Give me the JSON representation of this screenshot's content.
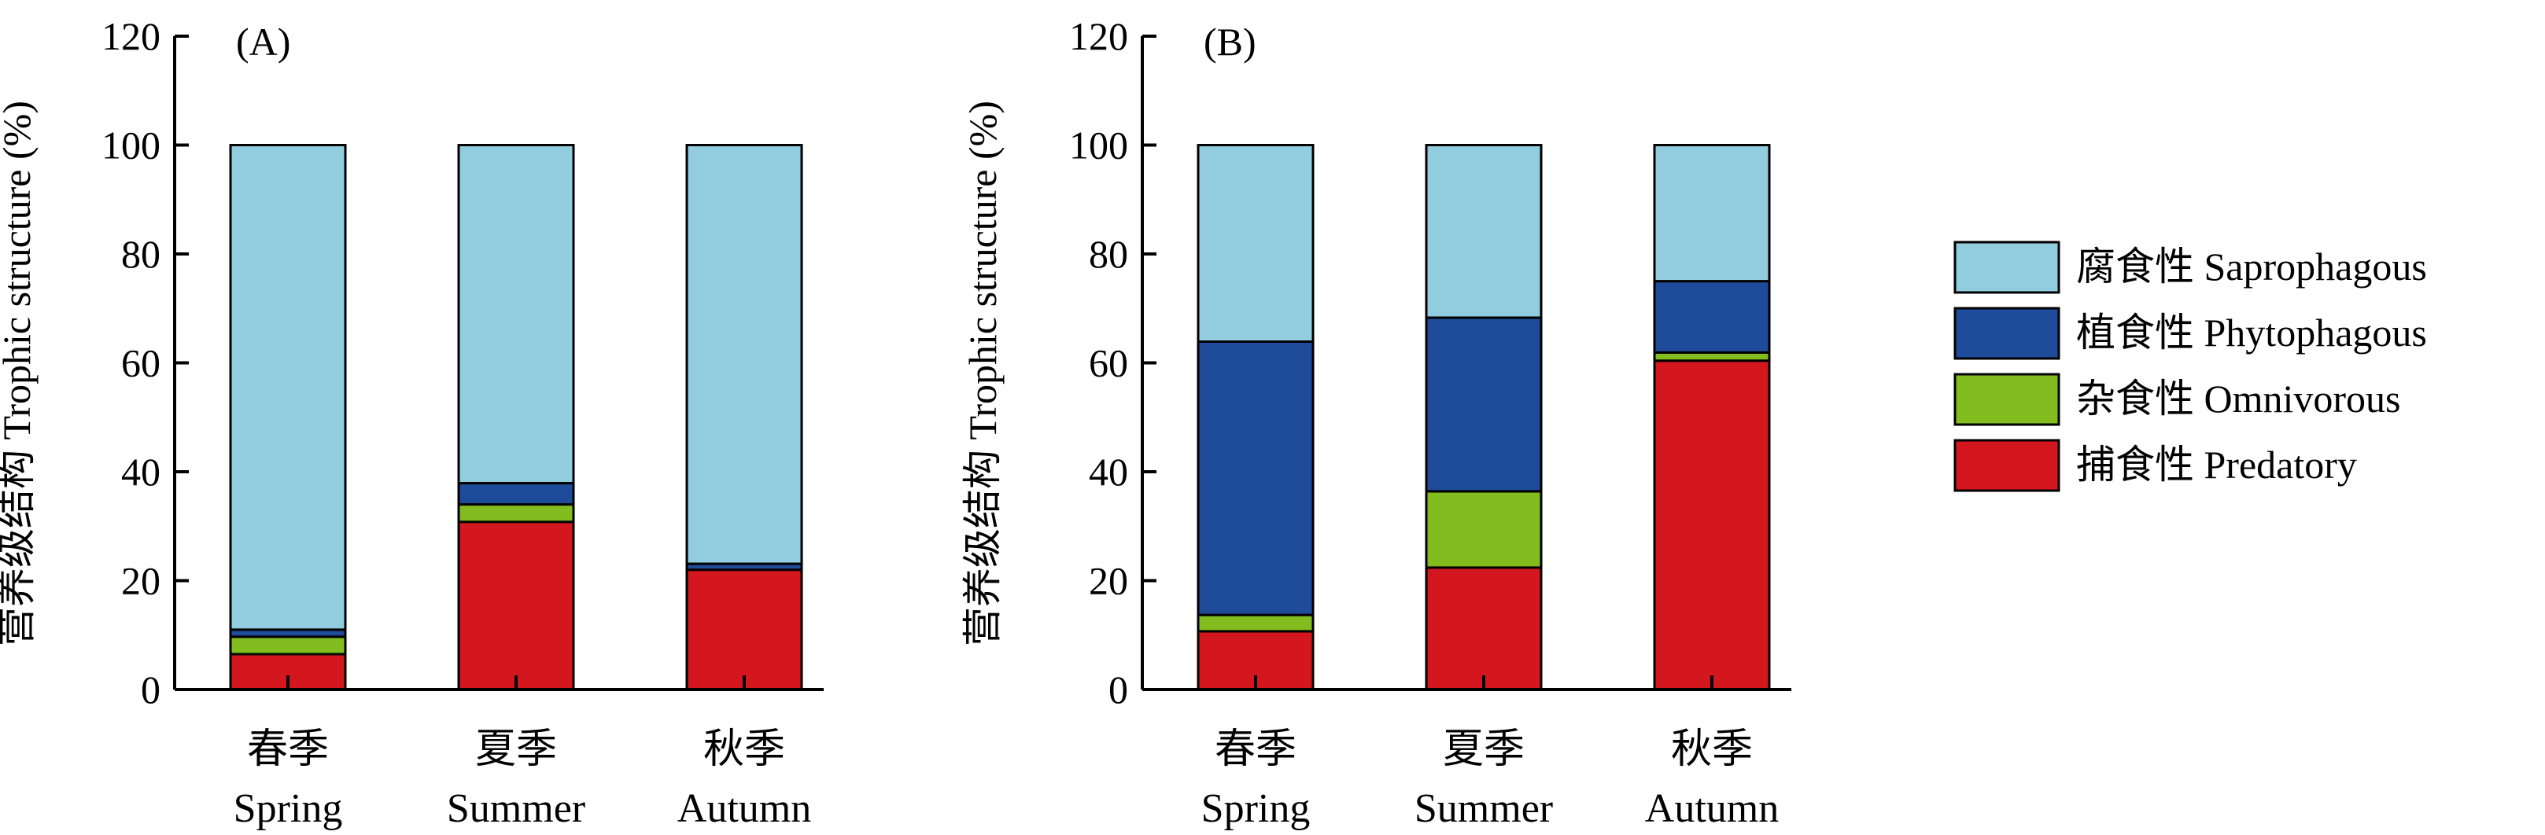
{
  "colors": {
    "saprophagous": "#92CDDF",
    "phytophagous": "#1E4C9A",
    "omnivorous": "#82BC1E",
    "predatory": "#D4161E",
    "stroke": "#000000"
  },
  "legend": {
    "placement": "right",
    "items": [
      {
        "key": "saprophagous",
        "label": "腐食性 Saprophagous"
      },
      {
        "key": "phytophagous",
        "label": "植食性 Phytophagous"
      },
      {
        "key": "omnivorous",
        "label": "杂食性 Omnivorous"
      },
      {
        "key": "predatory",
        "label": "捕食性 Predatory"
      }
    ]
  },
  "chart_data": [
    {
      "type": "bar",
      "stacked": true,
      "panel_label": "(A)",
      "ylabel": "营养级结构 Trophic structure (%)",
      "xlabel": "",
      "ylim": [
        0,
        120
      ],
      "yticks": [
        "0",
        "20",
        "40",
        "60",
        "80",
        "100",
        "120"
      ],
      "categories": [
        {
          "zh": "春季",
          "en": "Spring"
        },
        {
          "zh": "夏季",
          "en": "Summer"
        },
        {
          "zh": "秋季",
          "en": "Autumn"
        }
      ],
      "series": [
        {
          "key": "predatory",
          "name": "捕食性 Predatory",
          "values": [
            6.5,
            30.8,
            22.0
          ]
        },
        {
          "key": "omnivorous",
          "name": "杂食性 Omnivorous",
          "values": [
            3.2,
            3.2,
            0.0
          ]
        },
        {
          "key": "phytophagous",
          "name": "植食性 Phytophagous",
          "values": [
            1.3,
            3.9,
            1.1
          ]
        },
        {
          "key": "saprophagous",
          "name": "腐食性 Saprophagous",
          "values": [
            89.0,
            62.1,
            76.9
          ]
        }
      ]
    },
    {
      "type": "bar",
      "stacked": true,
      "panel_label": "(B)",
      "ylabel": "营养级结构 Trophic structure (%)",
      "xlabel": "",
      "ylim": [
        0,
        120
      ],
      "yticks": [
        "0",
        "20",
        "40",
        "60",
        "80",
        "100",
        "120"
      ],
      "categories": [
        {
          "zh": "春季",
          "en": "Spring"
        },
        {
          "zh": "夏季",
          "en": "Summer"
        },
        {
          "zh": "秋季",
          "en": "Autumn"
        }
      ],
      "series": [
        {
          "key": "predatory",
          "name": "捕食性 Predatory",
          "values": [
            10.7,
            22.4,
            60.4
          ]
        },
        {
          "key": "omnivorous",
          "name": "杂食性 Omnivorous",
          "values": [
            3.0,
            14.0,
            1.5
          ]
        },
        {
          "key": "phytophagous",
          "name": "植食性 Phytophagous",
          "values": [
            50.2,
            31.9,
            13.1
          ]
        },
        {
          "key": "saprophagous",
          "name": "腐食性 Saprophagous",
          "values": [
            36.1,
            31.7,
            25.0
          ]
        }
      ]
    }
  ]
}
